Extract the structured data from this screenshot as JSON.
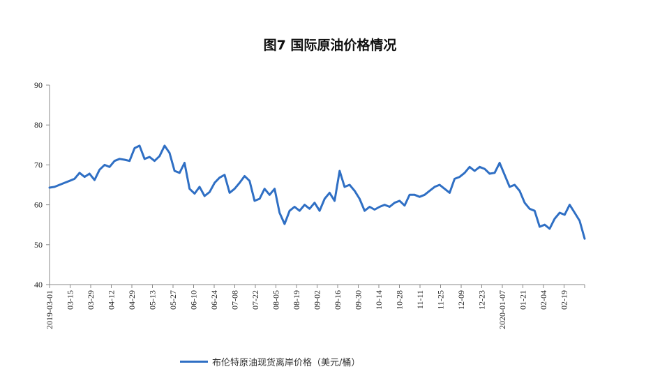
{
  "chart_data": {
    "type": "line",
    "title": "图7  国际原油价格情况",
    "xlabel": "",
    "ylabel": "",
    "ylim": [
      40,
      90
    ],
    "yticks": [
      "40",
      "50",
      "60",
      "70",
      "80",
      "90"
    ],
    "xticks": [
      "2019-03-01",
      "03-15",
      "03-29",
      "04-12",
      "04-29",
      "05-13",
      "05-27",
      "06-10",
      "06-24",
      "07-08",
      "07-22",
      "08-05",
      "08-19",
      "09-02",
      "09-16",
      "09-30",
      "10-14",
      "10-28",
      "11-11",
      "11-25",
      "12-09",
      "12-23",
      "2020-01-07",
      "01-21",
      "02-04",
      "02-19"
    ],
    "legend": "bottom",
    "series": [
      {
        "name": "布伦特原油现货离岸价格（美元/桶）",
        "color": "#2f6fc4",
        "values": [
          64.3,
          64.5,
          65.0,
          65.5,
          66.0,
          66.5,
          68.0,
          67.0,
          67.8,
          66.2,
          68.8,
          70.0,
          69.5,
          71.0,
          71.5,
          71.3,
          71.0,
          74.2,
          74.8,
          71.5,
          72.0,
          71.0,
          72.2,
          74.8,
          73.0,
          68.5,
          68.0,
          70.5,
          64.0,
          62.8,
          64.5,
          62.2,
          63.2,
          65.5,
          66.8,
          67.5,
          63.0,
          64.0,
          65.5,
          67.2,
          66.0,
          61.0,
          61.5,
          64.0,
          62.5,
          64.0,
          58.0,
          55.2,
          58.5,
          59.5,
          58.5,
          60.0,
          59.0,
          60.5,
          58.5,
          61.5,
          63.0,
          61.0,
          68.5,
          64.5,
          65.0,
          63.5,
          61.5,
          58.5,
          59.5,
          58.8,
          59.5,
          60.0,
          59.5,
          60.5,
          61.0,
          59.8,
          62.5,
          62.5,
          62.0,
          62.5,
          63.5,
          64.5,
          65.0,
          64.0,
          63.0,
          66.5,
          67.0,
          68.0,
          69.5,
          68.5,
          69.5,
          69.0,
          67.8,
          68.0,
          70.5,
          67.5,
          64.5,
          65.0,
          63.5,
          60.5,
          59.0,
          58.5,
          54.5,
          55.0,
          54.0,
          56.5,
          58.0,
          57.5,
          60.0,
          58.0,
          56.0,
          51.5
        ]
      }
    ]
  }
}
